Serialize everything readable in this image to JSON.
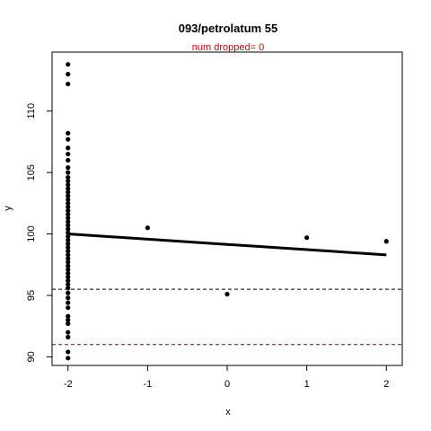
{
  "chart_data": {
    "type": "scatter",
    "title": "093/petrolatum 55",
    "subtitle": "num dropped= 0",
    "xlabel": "x",
    "ylabel": "y",
    "xlim": [
      -2.2,
      2.2
    ],
    "ylim": [
      89.3,
      114.8
    ],
    "xticks": [
      "-2",
      "-1",
      "0",
      "1",
      "2"
    ],
    "yticks": [
      "90",
      "95",
      "100",
      "105",
      "110"
    ],
    "grid": false,
    "colors": {
      "points": "#000000",
      "fit": "#000000",
      "subtitle": "#cc0000",
      "ref_line_1": "#000000",
      "ref_line_2": "#8b0000"
    },
    "series": [
      {
        "type": "scatter",
        "points": [
          [
            -2,
            113.8
          ],
          [
            -2,
            113.0
          ],
          [
            -2,
            112.2
          ],
          [
            -2,
            108.2
          ],
          [
            -2,
            107.7
          ],
          [
            -2,
            107.0
          ],
          [
            -2,
            106.5
          ],
          [
            -2,
            106.0
          ],
          [
            -2,
            105.4
          ],
          [
            -2,
            105.0
          ],
          [
            -2,
            104.6
          ],
          [
            -2,
            104.3
          ],
          [
            -2,
            104.0
          ],
          [
            -2,
            103.7
          ],
          [
            -2,
            103.4
          ],
          [
            -2,
            103.1
          ],
          [
            -2,
            102.8
          ],
          [
            -2,
            102.5
          ],
          [
            -2,
            102.2
          ],
          [
            -2,
            101.9
          ],
          [
            -2,
            101.6
          ],
          [
            -2,
            101.3
          ],
          [
            -2,
            101.0
          ],
          [
            -2,
            100.7
          ],
          [
            -2,
            100.4
          ],
          [
            -2,
            100.1
          ],
          [
            -2,
            99.8
          ],
          [
            -2,
            99.5
          ],
          [
            -2,
            99.2
          ],
          [
            -2,
            98.9
          ],
          [
            -2,
            98.6
          ],
          [
            -2,
            98.3
          ],
          [
            -2,
            98.0
          ],
          [
            -2,
            97.7
          ],
          [
            -2,
            97.4
          ],
          [
            -2,
            97.1
          ],
          [
            -2,
            96.8
          ],
          [
            -2,
            96.5
          ],
          [
            -2,
            96.2
          ],
          [
            -2,
            95.9
          ],
          [
            -2,
            95.6
          ],
          [
            -2,
            95.2
          ],
          [
            -2,
            94.8
          ],
          [
            -2,
            94.4
          ],
          [
            -2,
            94.0
          ],
          [
            -2,
            93.3
          ],
          [
            -2,
            93.0
          ],
          [
            -2,
            92.7
          ],
          [
            -2,
            92.0
          ],
          [
            -2,
            91.6
          ],
          [
            -2,
            90.4
          ],
          [
            -2,
            89.9
          ],
          [
            -1,
            100.5
          ],
          [
            0,
            95.1
          ],
          [
            1,
            99.7
          ],
          [
            2,
            99.4
          ]
        ]
      },
      {
        "type": "line",
        "points": [
          [
            -2,
            100.0
          ],
          [
            2,
            98.3
          ]
        ]
      }
    ],
    "hlines": [
      {
        "y": 95.5,
        "style": "dashed",
        "color": "#000000"
      },
      {
        "y": 91.0,
        "style": "dashed",
        "color": "#8b0000"
      }
    ]
  }
}
